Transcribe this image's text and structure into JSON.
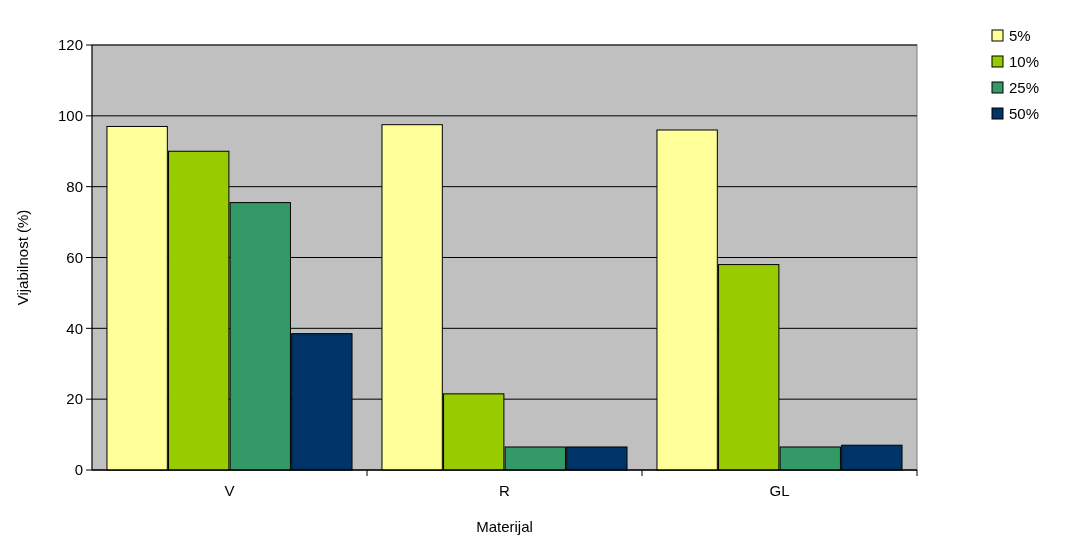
{
  "chart_data": {
    "type": "bar",
    "xlabel": "Materijal",
    "ylabel": "Vijabilnost (%)",
    "categories": [
      "V",
      "R",
      "GL"
    ],
    "series": [
      {
        "name": "5%",
        "color": "#ffff99",
        "values": [
          97,
          97.5,
          96
        ]
      },
      {
        "name": "10%",
        "color": "#99cc00",
        "values": [
          90,
          21.5,
          58
        ]
      },
      {
        "name": "25%",
        "color": "#339966",
        "values": [
          75.5,
          6.5,
          6.5
        ]
      },
      {
        "name": "50%",
        "color": "#003366",
        "values": [
          38.5,
          6.5,
          7
        ]
      }
    ],
    "ylim": [
      0,
      120
    ],
    "yticks": [
      0,
      20,
      40,
      60,
      80,
      100,
      120
    ],
    "grid": "y",
    "legend": "top right"
  }
}
